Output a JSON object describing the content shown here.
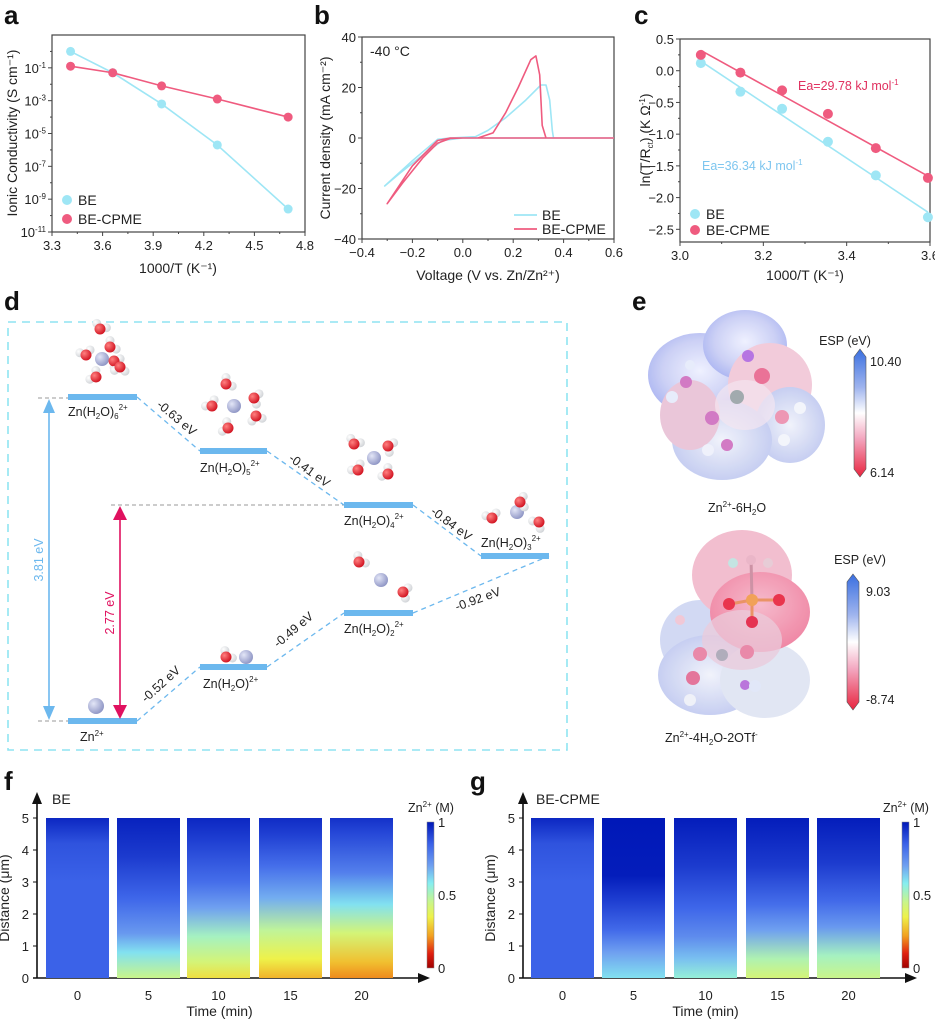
{
  "panel_labels": {
    "a": "a",
    "b": "b",
    "c": "c",
    "d": "d",
    "e": "e",
    "f": "f",
    "g": "g"
  },
  "colors": {
    "BE": "#9ee6f5",
    "BE_CPME": "#ef5b7f",
    "level": "#6cb8ee",
    "arrow_blue": "#6cb8ee",
    "arrow_red": "#e0115f",
    "ea_be": "#7ec6ef",
    "ea_cpme": "#e0305f"
  },
  "chart_data": [
    {
      "id": "a",
      "type": "line",
      "title": "",
      "xlabel": "1000/T (K⁻¹)",
      "ylabel": "Ionic Conductivity  (S cm⁻¹)",
      "xlim": [
        3.3,
        4.8
      ],
      "ylim_log10": [
        -11,
        1
      ],
      "yscale": "log",
      "xticks": [
        "3.3",
        "3.6",
        "3.9",
        "4.2",
        "4.5",
        "4.8"
      ],
      "yticks": [
        {
          "base": "10",
          "exp": "-1"
        },
        {
          "base": "10",
          "exp": "-3"
        },
        {
          "base": "10",
          "exp": "-5"
        },
        {
          "base": "10",
          "exp": "-7"
        },
        {
          "base": "10",
          "exp": "-9"
        },
        {
          "base": "10",
          "exp": "-11"
        }
      ],
      "ytick_values_log10": [
        -1,
        -3,
        -5,
        -7,
        -9,
        -11
      ],
      "legend": "bottom-left",
      "series": [
        {
          "name": "BE",
          "x": [
            3.41,
            3.66,
            3.95,
            4.28,
            4.7
          ],
          "log10_y": [
            0.0,
            -1.3,
            -3.2,
            -5.7,
            -9.6
          ]
        },
        {
          "name": "BE-CPME",
          "x": [
            3.41,
            3.66,
            3.95,
            4.28,
            4.7
          ],
          "log10_y": [
            -0.9,
            -1.3,
            -2.1,
            -2.9,
            -4.0
          ]
        }
      ]
    },
    {
      "id": "b",
      "type": "line",
      "title": "",
      "annotation": "-40 °C",
      "xlabel": "Voltage (V vs. Zn/Zn²⁺)",
      "ylabel": "Current density (mA cm⁻²)",
      "xlim": [
        -0.4,
        0.6
      ],
      "ylim": [
        -40,
        40
      ],
      "xticks": [
        "−0.4",
        "−0.2",
        "0.0",
        "0.2",
        "0.4",
        "0.6"
      ],
      "yticks": [
        "40",
        "20",
        "0",
        "−20",
        "−40"
      ],
      "legend": "bottom-right",
      "series": [
        {
          "name": "BE",
          "x": [
            0.6,
            0.36,
            0.355,
            0.345,
            0.33,
            0.31,
            0.25,
            0.17,
            0.1,
            0.05,
            -0.05,
            -0.1,
            -0.2,
            -0.31,
            -0.25,
            -0.15,
            -0.08,
            0.0,
            0.3,
            0.6
          ],
          "y": [
            0,
            0,
            3,
            15,
            21,
            21,
            15,
            8,
            3,
            0.5,
            0,
            -0.5,
            -9,
            -19,
            -14,
            -6,
            -1,
            0,
            0,
            0
          ]
        },
        {
          "name": "BE-CPME",
          "x": [
            0.6,
            0.33,
            0.315,
            0.305,
            0.29,
            0.27,
            0.22,
            0.17,
            0.12,
            0.06,
            -0.05,
            -0.1,
            -0.2,
            -0.3,
            -0.24,
            -0.16,
            -0.1,
            -0.05,
            0.0,
            0.3,
            0.6
          ],
          "y": [
            0,
            0,
            5,
            25,
            32.5,
            31,
            20,
            10,
            2,
            0,
            0,
            -1,
            -11,
            -26,
            -18,
            -8,
            -2,
            -0.2,
            0,
            0,
            0
          ]
        }
      ]
    },
    {
      "id": "c",
      "type": "scatter",
      "title": "",
      "xlabel": "1000/T (K⁻¹)",
      "ylabel": "ln(T/Rₒₜ) (K Ω⁻¹)",
      "ylabel_main": "ln(T/R",
      "ylabel_sub": "ct",
      "ylabel_tail": ") (K Ω",
      "ylabel_sup": "-1",
      "ylabel_end": ")",
      "xlim": [
        3.0,
        3.6
      ],
      "ylim": [
        -2.7,
        0.5
      ],
      "xticks": [
        "3.0",
        "3.2",
        "3.4",
        "3.6"
      ],
      "yticks": [
        "0.5",
        "0.0",
        "−0.5",
        "−1.0",
        "−1.5",
        "−2.0",
        "−2.5"
      ],
      "legend": "bottom-left",
      "series": [
        {
          "name": "BE",
          "x": [
            3.05,
            3.145,
            3.245,
            3.355,
            3.47,
            3.595
          ],
          "y": [
            0.12,
            -0.33,
            -0.6,
            -1.12,
            -1.65,
            -2.31
          ],
          "fit": [
            [
              3.05,
              0.15
            ],
            [
              3.595,
              -2.23
            ]
          ],
          "annotation": "Ea=36.34 kJ mol⁻¹",
          "ea_text": "Ea=36.34 kJ mol",
          "ea_sup": "-1"
        },
        {
          "name": "BE-CPME",
          "x": [
            3.05,
            3.145,
            3.245,
            3.355,
            3.47,
            3.595
          ],
          "y": [
            0.25,
            -0.03,
            -0.31,
            -0.68,
            -1.22,
            -1.69
          ],
          "fit": [
            [
              3.05,
              0.32
            ],
            [
              3.595,
              -1.66
            ]
          ],
          "annotation": "Ea=29.78 kJ mol⁻¹",
          "ea_text": "Ea=29.78 kJ mol",
          "ea_sup": "-1"
        }
      ]
    },
    {
      "id": "f",
      "type": "heatmap",
      "tag": "BE",
      "xlabel": "Time (min)",
      "ylabel": "Distance (μm)",
      "xticks": [
        "0",
        "5",
        "10",
        "15",
        "20"
      ],
      "yticks": [
        "0",
        "1",
        "2",
        "3",
        "4",
        "5"
      ],
      "ylim": [
        0,
        5
      ],
      "colorbar": {
        "title": "Zn²⁺ (M)",
        "title_main": "Zn",
        "title_sup": "2+",
        "title_tail": " (M)",
        "ticks": [
          "1",
          "0.5",
          "0"
        ],
        "range": [
          0,
          1
        ]
      },
      "columns": [
        {
          "time": 0,
          "profile": [
            [
              0,
              0.85
            ],
            [
              3,
              0.85
            ],
            [
              4.2,
              0.88
            ],
            [
              5,
              0.97
            ]
          ]
        },
        {
          "time": 5,
          "profile": [
            [
              0,
              0.45
            ],
            [
              0.8,
              0.6
            ],
            [
              1.4,
              0.72
            ],
            [
              2.5,
              0.84
            ],
            [
              3.8,
              0.93
            ],
            [
              5,
              0.98
            ]
          ]
        },
        {
          "time": 10,
          "profile": [
            [
              0,
              0.32
            ],
            [
              0.5,
              0.42
            ],
            [
              1.3,
              0.52
            ],
            [
              2.2,
              0.7
            ],
            [
              3.0,
              0.82
            ],
            [
              4.3,
              0.92
            ],
            [
              5,
              0.97
            ]
          ]
        },
        {
          "time": 15,
          "profile": [
            [
              0,
              0.25
            ],
            [
              0.6,
              0.35
            ],
            [
              1.5,
              0.47
            ],
            [
              2.5,
              0.68
            ],
            [
              3.5,
              0.82
            ],
            [
              4.5,
              0.92
            ],
            [
              5,
              0.96
            ]
          ]
        },
        {
          "time": 20,
          "profile": [
            [
              0,
              0.2
            ],
            [
              0.5,
              0.27
            ],
            [
              1.4,
              0.42
            ],
            [
              2.3,
              0.6
            ],
            [
              3.3,
              0.78
            ],
            [
              4.5,
              0.9
            ],
            [
              5,
              0.95
            ]
          ]
        }
      ]
    },
    {
      "id": "g",
      "type": "heatmap",
      "tag": "BE-CPME",
      "xlabel": "Time (min)",
      "ylabel": "Distance (μm)",
      "xticks": [
        "0",
        "5",
        "10",
        "15",
        "20"
      ],
      "yticks": [
        "0",
        "1",
        "2",
        "3",
        "4",
        "5"
      ],
      "ylim": [
        0,
        5
      ],
      "colorbar": {
        "title": "Zn²⁺ (M)",
        "title_main": "Zn",
        "title_sup": "2+",
        "title_tail": " (M)",
        "ticks": [
          "1",
          "0.5",
          "0"
        ],
        "range": [
          0,
          1
        ]
      },
      "columns": [
        {
          "time": 0,
          "profile": [
            [
              0,
              0.85
            ],
            [
              3,
              0.85
            ],
            [
              4.2,
              0.88
            ],
            [
              5,
              0.97
            ]
          ]
        },
        {
          "time": 5,
          "profile": [
            [
              0,
              0.6
            ],
            [
              0.8,
              0.7
            ],
            [
              1.5,
              0.83
            ],
            [
              2.4,
              0.92
            ],
            [
              3.2,
              0.99
            ],
            [
              5,
              1.0
            ]
          ]
        },
        {
          "time": 10,
          "profile": [
            [
              0,
              0.55
            ],
            [
              0.6,
              0.65
            ],
            [
              1.3,
              0.75
            ],
            [
              2.2,
              0.84
            ],
            [
              3.5,
              0.93
            ],
            [
              5,
              0.99
            ]
          ]
        },
        {
          "time": 15,
          "profile": [
            [
              0,
              0.42
            ],
            [
              0.6,
              0.5
            ],
            [
              1.5,
              0.7
            ],
            [
              2.3,
              0.82
            ],
            [
              3.5,
              0.93
            ],
            [
              5,
              0.99
            ]
          ]
        },
        {
          "time": 20,
          "profile": [
            [
              0,
              0.45
            ],
            [
              0.7,
              0.52
            ],
            [
              1.6,
              0.72
            ],
            [
              2.4,
              0.83
            ],
            [
              3.6,
              0.93
            ],
            [
              5,
              0.99
            ]
          ]
        }
      ]
    }
  ],
  "panel_d": {
    "levels": [
      {
        "id": "zn6",
        "label_main": "Zn(H",
        "label_sub": "2",
        "label_mid": "O)",
        "label_sub2": "6",
        "label_sup": "2+"
      },
      {
        "id": "zn5",
        "label_main": "Zn(H",
        "label_sub": "2",
        "label_mid": "O)",
        "label_sub2": "5",
        "label_sup": "2+"
      },
      {
        "id": "zn4",
        "label_main": "Zn(H",
        "label_sub": "2",
        "label_mid": "O)",
        "label_sub2": "4",
        "label_sup": "2+"
      },
      {
        "id": "zn3",
        "label_main": "Zn(H",
        "label_sub": "2",
        "label_mid": "O)",
        "label_sub2": "3",
        "label_sup": "2+"
      },
      {
        "id": "zn0",
        "label_main": "Zn",
        "label_sup": "2+"
      },
      {
        "id": "zn1",
        "label_main": "Zn(H",
        "label_sub": "2",
        "label_mid": "O)",
        "label_sup": "2+"
      },
      {
        "id": "zn2",
        "label_main": "Zn(H",
        "label_sub": "2",
        "label_mid": "O)",
        "label_sub2": "2",
        "label_sup": "2+"
      }
    ],
    "steps": [
      "-0.63 eV",
      "-0.41 eV",
      "-0.84 eV",
      "-0.52 eV",
      "-0.49 eV",
      "-0.92 eV"
    ],
    "gaps": {
      "blue": "3.81 eV",
      "red": "2.77 eV"
    }
  },
  "panel_e": {
    "top": {
      "caption_main": "Zn",
      "caption_sup": "2+",
      "caption_tail": "-6H",
      "caption_sub": "2",
      "caption_end": "O",
      "esp_title": "ESP (eV)",
      "esp_max": "10.40",
      "esp_min": "6.14"
    },
    "bottom": {
      "caption_main": "Zn",
      "caption_sup": "2+",
      "caption_tail": "-4H",
      "caption_sub": "2",
      "caption_end": "O-2OTf",
      "caption_sup2": "-",
      "esp_title": "ESP (eV)",
      "esp_max": "9.03",
      "esp_min": "-8.74"
    }
  }
}
